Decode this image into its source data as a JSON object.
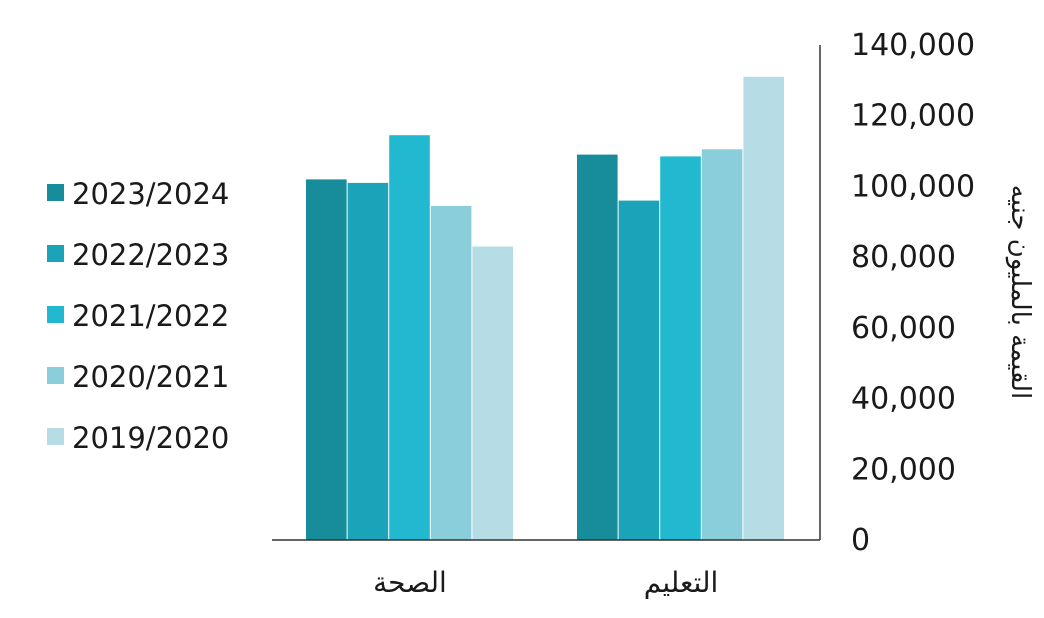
{
  "chart_data": {
    "type": "bar",
    "categories": [
      "التعليم",
      "الصحة"
    ],
    "series": [
      {
        "name": "2023/2024",
        "values": [
          109000,
          102000
        ],
        "color": "#178c9b"
      },
      {
        "name": "2022/2023",
        "values": [
          96000,
          101000
        ],
        "color": "#1ba4b9"
      },
      {
        "name": "2021/2022",
        "values": [
          108500,
          114500
        ],
        "color": "#22b9d0"
      },
      {
        "name": "2020/2021",
        "values": [
          110500,
          94500
        ],
        "color": "#8acedb"
      },
      {
        "name": "2019/2020",
        "values": [
          131000,
          83000
        ],
        "color": "#b6dde6"
      }
    ],
    "ylabel": "القيمة بالمليون جنيه",
    "ylim": [
      0,
      140000
    ],
    "yticks": [
      "0",
      "20,000",
      "40,000",
      "60,000",
      "80,000",
      "100,000",
      "120,000",
      "140,000"
    ],
    "ytick_values": [
      0,
      20000,
      40000,
      60000,
      80000,
      100000,
      120000,
      140000
    ],
    "y_axis_side": "right",
    "legend_position": "left",
    "grid": false
  }
}
